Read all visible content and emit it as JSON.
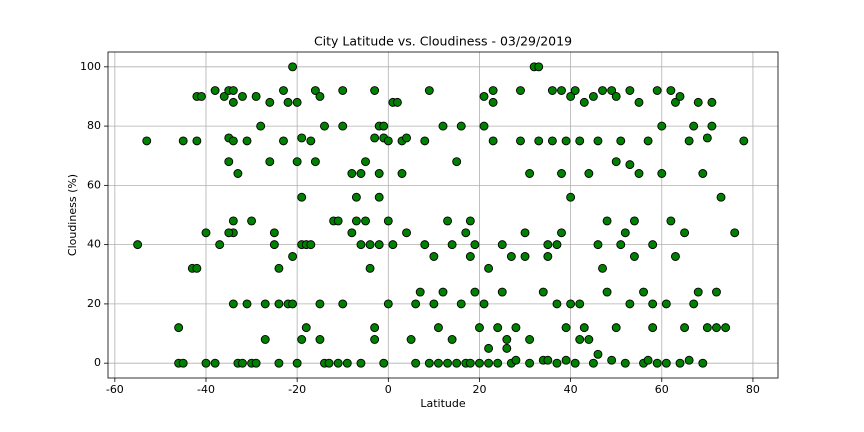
{
  "chart_data": {
    "type": "scatter",
    "title": "City Latitude vs. Cloudiness - 03/29/2019",
    "x_label": "Latitude",
    "y_label": "Cloudiness (%)",
    "color": "#008000",
    "edge_color": "#000000",
    "grid": true,
    "xlim": [
      -61.5,
      85.5
    ],
    "ylim": [
      -5,
      105
    ],
    "xticks": [
      -60,
      -40,
      -20,
      0,
      20,
      40,
      60,
      80
    ],
    "yticks": [
      0,
      20,
      40,
      60,
      80,
      100
    ],
    "x": [
      -55,
      -53,
      -46,
      -46,
      -45,
      -45,
      -43,
      -42,
      -42,
      -42,
      -41,
      -40,
      -40,
      -38,
      -38,
      -37,
      -36,
      -35,
      -34,
      -35,
      -34,
      -34,
      -35,
      -34,
      -34,
      -35,
      -34,
      -33,
      -33,
      -32,
      -32,
      -31,
      -31,
      -30,
      -30,
      -29,
      -29,
      -28,
      -27,
      -27,
      -26,
      -26,
      -25,
      -25,
      -24,
      -24,
      -24,
      -23,
      -23,
      -22,
      -22,
      -21,
      -21,
      -21,
      -20,
      -20,
      -20,
      -19,
      -19,
      -19,
      -19,
      -18,
      -18,
      -17,
      -17,
      -16,
      -16,
      -15,
      -15,
      -15,
      -14,
      -14,
      -13,
      -12,
      -11,
      -11,
      -10,
      -10,
      -10,
      -9,
      -8,
      -8,
      -7,
      -7,
      -6,
      -6,
      -6,
      -5,
      -5,
      -4,
      -4,
      -3,
      -3,
      -3,
      -2,
      -2,
      -1,
      -1,
      0,
      0,
      0,
      -2,
      -3,
      -2,
      -1,
      1,
      1,
      2,
      3,
      3,
      4,
      4,
      5,
      6,
      6,
      7,
      8,
      8,
      9,
      9,
      10,
      10,
      11,
      11,
      12,
      12,
      13,
      13,
      14,
      14,
      15,
      15,
      16,
      16,
      17,
      17,
      18,
      18,
      18,
      19,
      19,
      20,
      20,
      21,
      21,
      21,
      22,
      22,
      22,
      23,
      23,
      23,
      24,
      24,
      25,
      25,
      26,
      26,
      27,
      27,
      28,
      28,
      29,
      29,
      30,
      30,
      31,
      31,
      31,
      32,
      33,
      33,
      34,
      34,
      35,
      35,
      36,
      36,
      37,
      37,
      38,
      38,
      38,
      39,
      39,
      40,
      40,
      40,
      41,
      41,
      42,
      42,
      43,
      43,
      44,
      44,
      45,
      45,
      46,
      46,
      47,
      47,
      48,
      48,
      49,
      49,
      50,
      50,
      50,
      51,
      51,
      52,
      52,
      53,
      53,
      54,
      54,
      55,
      55,
      56,
      56,
      57,
      57,
      58,
      58,
      59,
      59,
      60,
      60,
      61,
      61,
      62,
      62,
      63,
      63,
      64,
      64,
      65,
      65,
      66,
      66,
      67,
      67,
      68,
      68,
      69,
      69,
      70,
      70,
      71,
      71,
      72,
      72,
      73,
      74,
      76,
      78,
      37,
      39,
      42,
      35,
      46,
      58,
      53
    ],
    "values": [
      40,
      75,
      12,
      0,
      0,
      75,
      32,
      32,
      75,
      90,
      90,
      0,
      44,
      92,
      0,
      40,
      90,
      92,
      92,
      76,
      75,
      88,
      68,
      48,
      44,
      44,
      20,
      64,
      0,
      0,
      90,
      75,
      20,
      48,
      0,
      0,
      90,
      80,
      20,
      8,
      68,
      88,
      44,
      40,
      32,
      20,
      0,
      75,
      92,
      88,
      20,
      100,
      36,
      20,
      88,
      68,
      0,
      76,
      56,
      40,
      8,
      40,
      12,
      75,
      40,
      68,
      92,
      90,
      20,
      8,
      80,
      0,
      0,
      48,
      48,
      0,
      92,
      80,
      20,
      0,
      64,
      44,
      56,
      48,
      64,
      40,
      0,
      68,
      48,
      32,
      40,
      76,
      12,
      8,
      56,
      64,
      76,
      0,
      75,
      48,
      20,
      40,
      92,
      80,
      80,
      40,
      88,
      88,
      75,
      64,
      76,
      44,
      8,
      0,
      20,
      24,
      40,
      75,
      92,
      0,
      36,
      20,
      12,
      0,
      80,
      24,
      0,
      48,
      40,
      8,
      0,
      68,
      20,
      80,
      44,
      0,
      48,
      36,
      0,
      40,
      24,
      12,
      0,
      80,
      90,
      20,
      5,
      32,
      0,
      92,
      88,
      75,
      12,
      0,
      40,
      24,
      5,
      8,
      36,
      0,
      1,
      12,
      75,
      92,
      44,
      36,
      8,
      64,
      0,
      100,
      100,
      75,
      24,
      1,
      36,
      40,
      92,
      75,
      40,
      0,
      64,
      92,
      44,
      75,
      1,
      20,
      90,
      56,
      92,
      0,
      20,
      75,
      12,
      88,
      64,
      8,
      90,
      0,
      75,
      40,
      92,
      32,
      48,
      24,
      92,
      1,
      90,
      68,
      12,
      40,
      75,
      44,
      0,
      92,
      67,
      36,
      48,
      88,
      64,
      24,
      0,
      1,
      75,
      40,
      20,
      92,
      0,
      80,
      64,
      20,
      0,
      48,
      92,
      88,
      36,
      90,
      0,
      44,
      12,
      75,
      1,
      80,
      20,
      88,
      24,
      64,
      0,
      76,
      12,
      88,
      80,
      24,
      12,
      56,
      12,
      44,
      75,
      20,
      12,
      8,
      1,
      3,
      12,
      20
    ]
  }
}
